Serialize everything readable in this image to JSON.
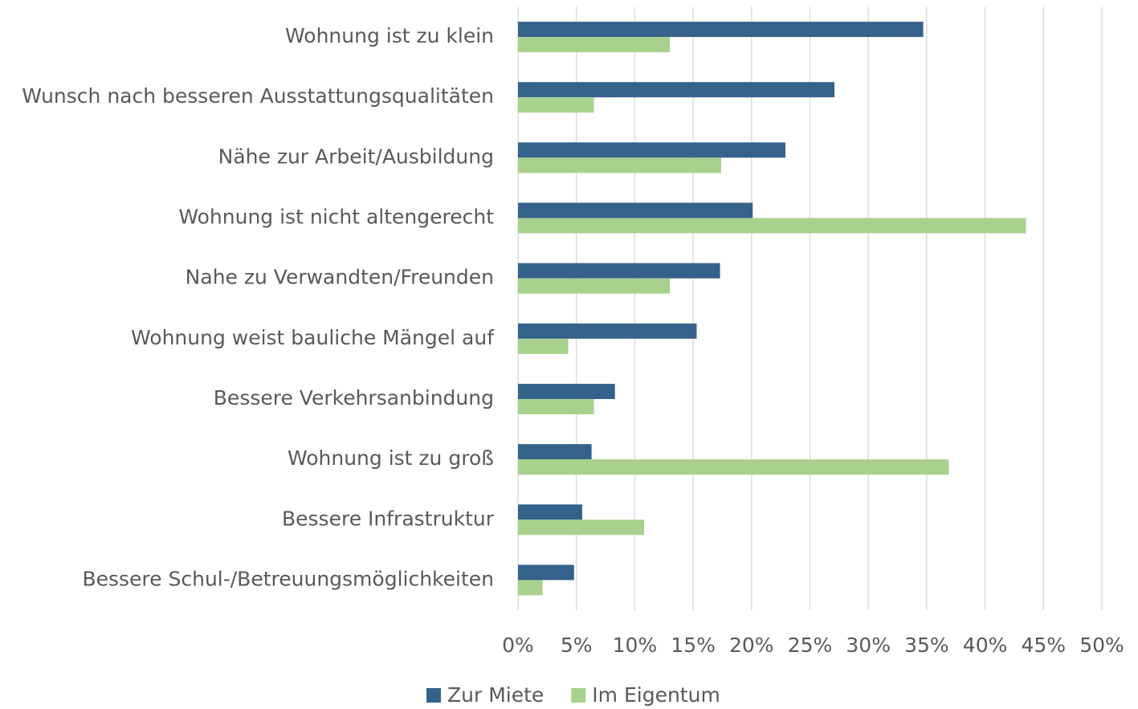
{
  "chart_data": {
    "type": "bar",
    "orientation": "horizontal",
    "categories": [
      "Wohnung ist zu klein",
      "Wunsch nach besseren Ausstattungsqualitäten",
      "Nähe zur Arbeit/Ausbildung",
      "Wohnung ist nicht altengerecht",
      "Nahe zu Verwandten/Freunden",
      "Wohnung weist bauliche Mängel auf",
      "Bessere Verkehrsanbindung",
      "Wohnung ist zu groß",
      "Bessere Infrastruktur",
      "Bessere Schul-/Betreuungsmöglichkeiten"
    ],
    "series": [
      {
        "name": "Zur Miete",
        "color": "#35628b",
        "values": [
          34.7,
          27.1,
          22.9,
          20.1,
          17.3,
          15.3,
          8.3,
          6.3,
          5.5,
          4.8
        ]
      },
      {
        "name": "Im Eigentum",
        "color": "#a9d18e",
        "values": [
          13.0,
          6.5,
          17.4,
          43.5,
          13.0,
          4.3,
          6.5,
          36.9,
          10.8,
          2.1
        ]
      }
    ],
    "xlim": [
      0,
      50
    ],
    "xticks": [
      {
        "value": 0,
        "label": "0%"
      },
      {
        "value": 5,
        "label": "5%"
      },
      {
        "value": 10,
        "label": "10%"
      },
      {
        "value": 15,
        "label": "15%"
      },
      {
        "value": 20,
        "label": "20%"
      },
      {
        "value": 25,
        "label": "25%"
      },
      {
        "value": 30,
        "label": "30%"
      },
      {
        "value": 35,
        "label": "35%"
      },
      {
        "value": 40,
        "label": "40%"
      },
      {
        "value": 45,
        "label": "45%"
      },
      {
        "value": 50,
        "label": "50%"
      }
    ],
    "grid": true,
    "legend": "bottom"
  }
}
